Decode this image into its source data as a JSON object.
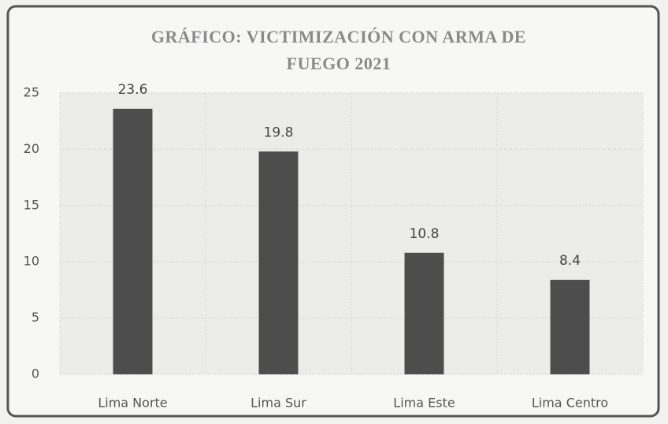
{
  "chart_data": {
    "type": "bar",
    "title": "GRÁFICO: VICTIMIZACIÓN CON ARMA DE FUEGO 2021",
    "categories": [
      "Lima Norte",
      "Lima Sur",
      "Lima Este",
      "Lima Centro"
    ],
    "values": [
      23.6,
      19.8,
      10.8,
      8.4
    ],
    "color": "#4d4d4d",
    "ylim": [
      0,
      25
    ],
    "yticks": [
      0,
      5,
      10,
      15,
      20,
      25
    ],
    "grid": true
  }
}
